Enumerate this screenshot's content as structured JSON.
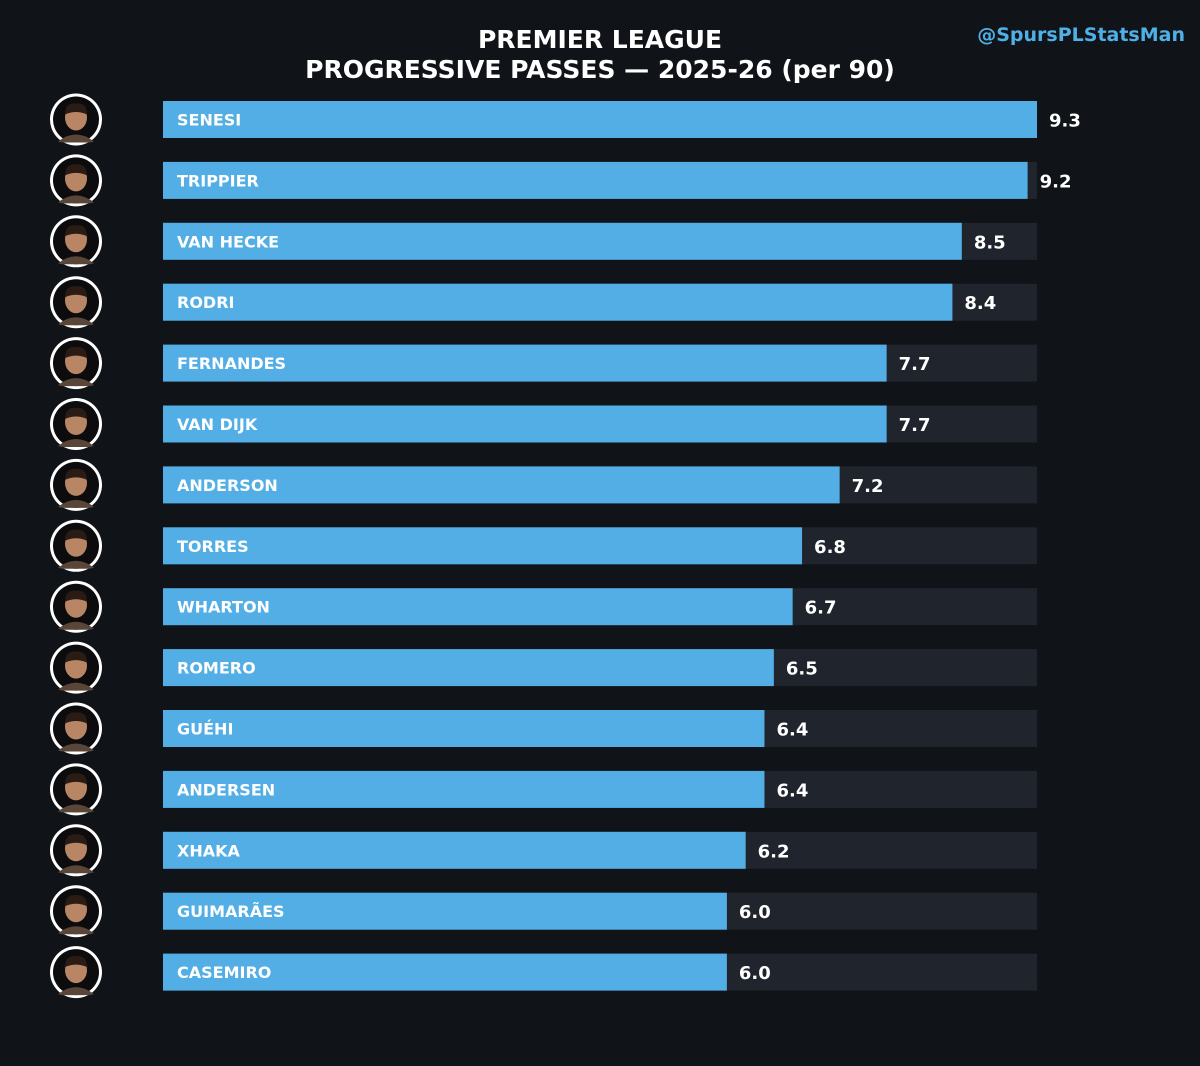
{
  "header": {
    "title_line1": "PREMIER LEAGUE",
    "title_line2": "PROGRESSIVE PASSES — 2025-26 (per 90)",
    "handle": "@SpursPLStatsMan"
  },
  "colors": {
    "background": "#101317",
    "bar": "#52aee5",
    "track": "#20242c",
    "text": "#ffffff",
    "handle": "#4fb0e8"
  },
  "chart_data": {
    "type": "bar",
    "orientation": "horizontal",
    "title": "PREMIER LEAGUE\nPROGRESSIVE PASSES — 2025-26 (per 90)",
    "xlim": [
      0,
      9.3
    ],
    "grid": false,
    "legend": "none",
    "avatar_icon": "player-headshot-icon",
    "categories": [
      "SENESI",
      "TRIPPIER",
      "VAN HECKE",
      "RODRI",
      "FERNANDES",
      "VAN DIJK",
      "ANDERSON",
      "TORRES",
      "WHARTON",
      "ROMERO",
      "GUÉHI",
      "ANDERSEN",
      "XHAKA",
      "GUIMARÃES",
      "CASEMIRO"
    ],
    "values": [
      9.3,
      9.2,
      8.5,
      8.4,
      7.7,
      7.7,
      7.2,
      6.8,
      6.7,
      6.5,
      6.4,
      6.4,
      6.2,
      6.0,
      6.0
    ],
    "value_labels": [
      "9.3",
      "9.2",
      "8.5",
      "8.4",
      "7.7",
      "7.7",
      "7.2",
      "6.8",
      "6.7",
      "6.5",
      "6.4",
      "6.4",
      "6.2",
      "6.0",
      "6.0"
    ]
  }
}
